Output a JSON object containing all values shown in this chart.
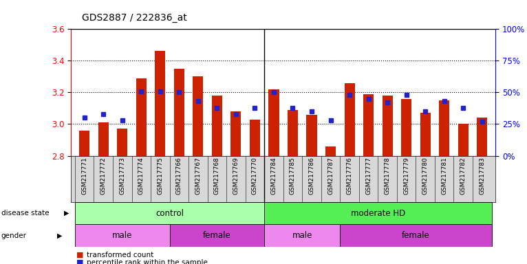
{
  "title": "GDS2887 / 222836_at",
  "samples": [
    "GSM217771",
    "GSM217772",
    "GSM217773",
    "GSM217774",
    "GSM217775",
    "GSM217766",
    "GSM217767",
    "GSM217768",
    "GSM217769",
    "GSM217770",
    "GSM217784",
    "GSM217785",
    "GSM217786",
    "GSM217787",
    "GSM217776",
    "GSM217777",
    "GSM217778",
    "GSM217779",
    "GSM217780",
    "GSM217781",
    "GSM217782",
    "GSM217783"
  ],
  "bar_values": [
    2.96,
    3.01,
    2.97,
    3.29,
    3.46,
    3.35,
    3.3,
    3.18,
    3.08,
    3.03,
    3.22,
    3.09,
    3.06,
    2.86,
    3.26,
    3.19,
    3.18,
    3.16,
    3.07,
    3.15,
    3.0,
    3.04
  ],
  "percentile_values": [
    30,
    33,
    28,
    51,
    51,
    50,
    43,
    38,
    33,
    38,
    50,
    38,
    35,
    28,
    48,
    45,
    42,
    48,
    35,
    43,
    38,
    27
  ],
  "bar_color": "#cc2200",
  "percentile_color": "#2222cc",
  "ymin": 2.8,
  "ymax": 3.6,
  "yticks": [
    2.8,
    3.0,
    3.2,
    3.4,
    3.6
  ],
  "right_yticks": [
    0,
    25,
    50,
    75,
    100
  ],
  "right_yticklabels": [
    "0%",
    "25%",
    "50%",
    "75%",
    "100%"
  ],
  "disease_state_groups": [
    {
      "label": "control",
      "start": 0,
      "end": 9,
      "color": "#aaffaa"
    },
    {
      "label": "moderate HD",
      "start": 10,
      "end": 21,
      "color": "#55ee55"
    }
  ],
  "gender_groups": [
    {
      "label": "male",
      "start": 0,
      "end": 4,
      "color": "#ee88ee"
    },
    {
      "label": "female",
      "start": 5,
      "end": 9,
      "color": "#cc44cc"
    },
    {
      "label": "male",
      "start": 10,
      "end": 13,
      "color": "#ee88ee"
    },
    {
      "label": "female",
      "start": 14,
      "end": 21,
      "color": "#cc44cc"
    }
  ],
  "legend_items": [
    {
      "label": "transformed count",
      "color": "#cc2200"
    },
    {
      "label": "percentile rank within the sample",
      "color": "#2222cc"
    }
  ],
  "bar_width": 0.55,
  "label_bg": "#d8d8d8",
  "plot_bg": "#ffffff"
}
